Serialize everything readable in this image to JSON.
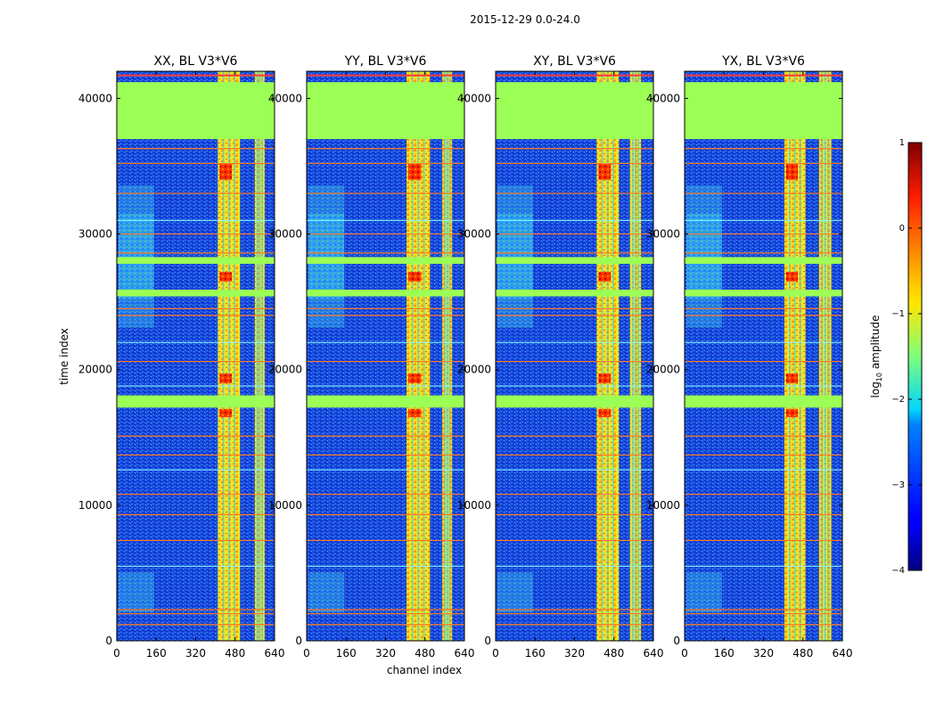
{
  "chart_data": {
    "type": "heatmap",
    "suptitle": "2015-12-29 0.0-24.0",
    "xlabel": "channel index",
    "ylabel": "time index",
    "xlim": [
      0,
      640
    ],
    "ylim": [
      0,
      42000
    ],
    "x_ticks": [
      "0",
      "160",
      "320",
      "480",
      "640"
    ],
    "x_tick_values": [
      0,
      160,
      320,
      480,
      640
    ],
    "y_ticks": [
      "0",
      "10000",
      "20000",
      "30000",
      "40000"
    ],
    "y_tick_values": [
      0,
      10000,
      20000,
      30000,
      40000
    ],
    "panels": [
      {
        "title": "XX, BL V3*V6",
        "strong_channels": [
          [
            410,
            500
          ],
          [
            560,
            600
          ]
        ]
      },
      {
        "title": "YY, BL V3*V6",
        "strong_channels": [
          [
            405,
            500
          ],
          [
            550,
            590
          ]
        ]
      },
      {
        "title": "XY, BL V3*V6",
        "strong_channels": [
          [
            410,
            500
          ],
          [
            545,
            590
          ]
        ]
      },
      {
        "title": "YX, BL V3*V6",
        "strong_channels": [
          [
            405,
            490
          ],
          [
            545,
            595
          ]
        ]
      }
    ],
    "flagged_time_ranges": [
      [
        37000,
        41200
      ],
      [
        17200,
        18100
      ],
      [
        27800,
        28300
      ],
      [
        25400,
        25900
      ]
    ],
    "colorbar": {
      "label": "log10 amplitude",
      "min": -4,
      "max": 1,
      "ticks": [
        1,
        0,
        -1,
        -2,
        -3,
        -4
      ],
      "tick_labels": [
        "1",
        "0",
        "−1",
        "−2",
        "−3",
        "−4"
      ]
    }
  }
}
